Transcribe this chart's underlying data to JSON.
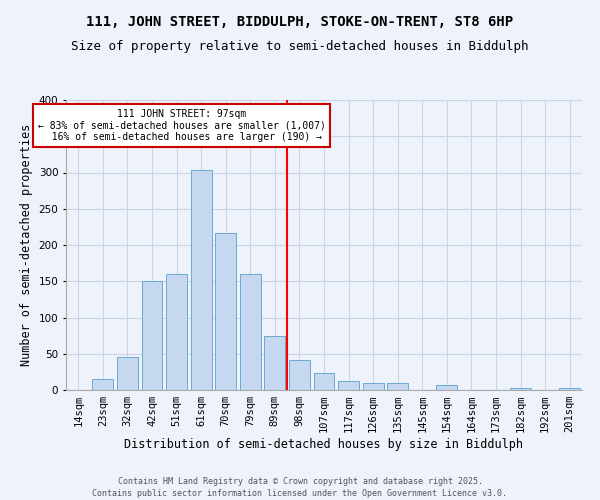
{
  "title1": "111, JOHN STREET, BIDDULPH, STOKE-ON-TRENT, ST8 6HP",
  "title2": "Size of property relative to semi-detached houses in Biddulph",
  "xlabel": "Distribution of semi-detached houses by size in Biddulph",
  "ylabel": "Number of semi-detached properties",
  "categories": [
    "14sqm",
    "23sqm",
    "32sqm",
    "42sqm",
    "51sqm",
    "61sqm",
    "70sqm",
    "79sqm",
    "89sqm",
    "98sqm",
    "107sqm",
    "117sqm",
    "126sqm",
    "135sqm",
    "145sqm",
    "154sqm",
    "164sqm",
    "173sqm",
    "182sqm",
    "192sqm",
    "201sqm"
  ],
  "values": [
    0,
    15,
    45,
    150,
    160,
    303,
    216,
    160,
    75,
    41,
    24,
    12,
    10,
    9,
    0,
    7,
    0,
    0,
    3,
    0,
    3
  ],
  "bar_color": "#c5d8f0",
  "bar_edge_color": "#6aaad4",
  "marker_label": "111 JOHN STREET: 97sqm",
  "smaller_pct": "83% of semi-detached houses are smaller (1,007)",
  "larger_pct": "16% of semi-detached houses are larger (190)",
  "annotation_box_color": "#ffffff",
  "annotation_box_edge": "#cc0000",
  "grid_color": "#c8d4e8",
  "background_color": "#eef2fb",
  "ylim": [
    0,
    400
  ],
  "yticks": [
    0,
    50,
    100,
    150,
    200,
    250,
    300,
    350,
    400
  ],
  "footer": "Contains HM Land Registry data © Crown copyright and database right 2025.\nContains public sector information licensed under the Open Government Licence v3.0.",
  "title1_fontsize": 10,
  "title2_fontsize": 9,
  "axis_label_fontsize": 8.5,
  "tick_fontsize": 7.5,
  "footer_fontsize": 6
}
